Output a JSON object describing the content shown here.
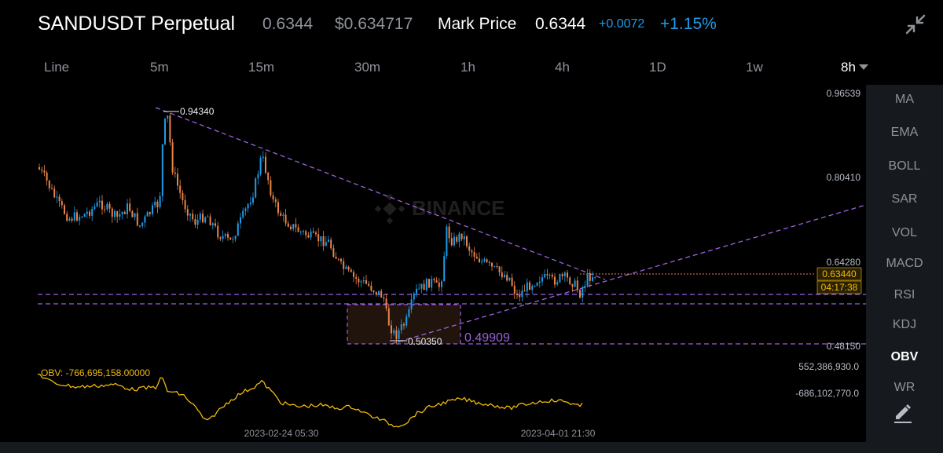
{
  "header": {
    "symbol": "SANDUSDT Perpetual",
    "last_price": "0.6344",
    "usd_price": "$0.634717",
    "mark_label": "Mark Price",
    "mark_value": "0.6344",
    "change_abs": "+0.0072",
    "change_pct": "+1.15%",
    "collapse_icon": "collapse-arrows-icon"
  },
  "timeframes": {
    "items": [
      "Line",
      "5m",
      "15m",
      "30m",
      "1h",
      "4h",
      "1D",
      "1w",
      "8h"
    ],
    "active": "8h"
  },
  "indicators": {
    "items": [
      "MA",
      "EMA",
      "BOLL",
      "SAR",
      "VOL",
      "MACD",
      "RSI",
      "KDJ",
      "OBV",
      "WR"
    ],
    "active": "OBV",
    "edit_icon": "pencil-icon"
  },
  "chart": {
    "watermark": "BINANCE",
    "price_axis": [
      "0.96539",
      "0.80410",
      "0.64280",
      "0.48150"
    ],
    "current_price_tag": "0.63440",
    "countdown_tag": "04:17:38",
    "high_label": "0.94340",
    "low_label": "0.50350",
    "support_label": "0.49909",
    "obv_label": "OBV: -766,695,158.00000",
    "obv_axis": [
      "552,386,930.0",
      "-686,102,770.0"
    ],
    "time_axis": [
      "2023-02-24 05:30",
      "2023-04-01 21:30"
    ]
  },
  "colors": {
    "up": "#1e9be8",
    "down": "#e8844a",
    "drawing": "#9c62e0",
    "obv_line": "#f0b90b",
    "tag_bg": "#f0b90b"
  }
}
